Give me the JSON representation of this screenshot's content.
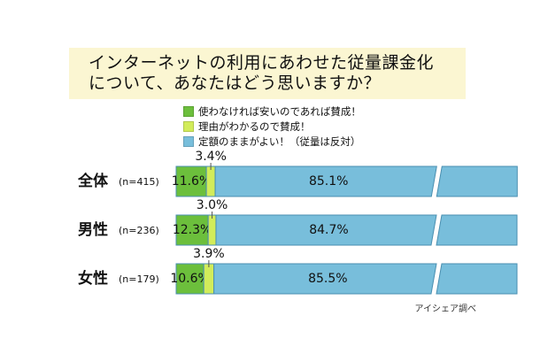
{
  "title_lines": [
    "インターネットの利用にあわせた従量課金化",
    "について、あなたはどう思いますか？"
  ],
  "source": "アイシェア調べ",
  "colors": {
    "title_bg": "#fbf6d2",
    "green": "#6cbf3c",
    "light_green": "#d2ec5a",
    "blue": "#78bedb",
    "bar_border": "#4a8fb0"
  },
  "chart_data": {
    "type": "bar",
    "orientation": "horizontal",
    "stacked": true,
    "categories": [
      "全体",
      "男性",
      "女性"
    ],
    "category_n": [
      "(n=415)",
      "(n=236)",
      "(n=179)"
    ],
    "series": [
      {
        "name": "使わなければ安いのであれば賛成！",
        "values": [
          11.6,
          12.3,
          10.6
        ],
        "labels": [
          "11.6%",
          "12.3%",
          "10.6%"
        ],
        "color": "#6cbf3c"
      },
      {
        "name": "理由がわかるので賛成！",
        "values": [
          3.4,
          3.0,
          3.9
        ],
        "labels": [
          "3.4%",
          "3.0%",
          "3.9%"
        ],
        "color": "#d2ec5a"
      },
      {
        "name": "定額のままがよい！（従量は反対）",
        "values": [
          85.1,
          84.7,
          85.5
        ],
        "labels": [
          "85.1%",
          "84.7%",
          "85.5%"
        ],
        "color": "#78bedb"
      }
    ],
    "axis_break": true,
    "legend_position": "top"
  }
}
